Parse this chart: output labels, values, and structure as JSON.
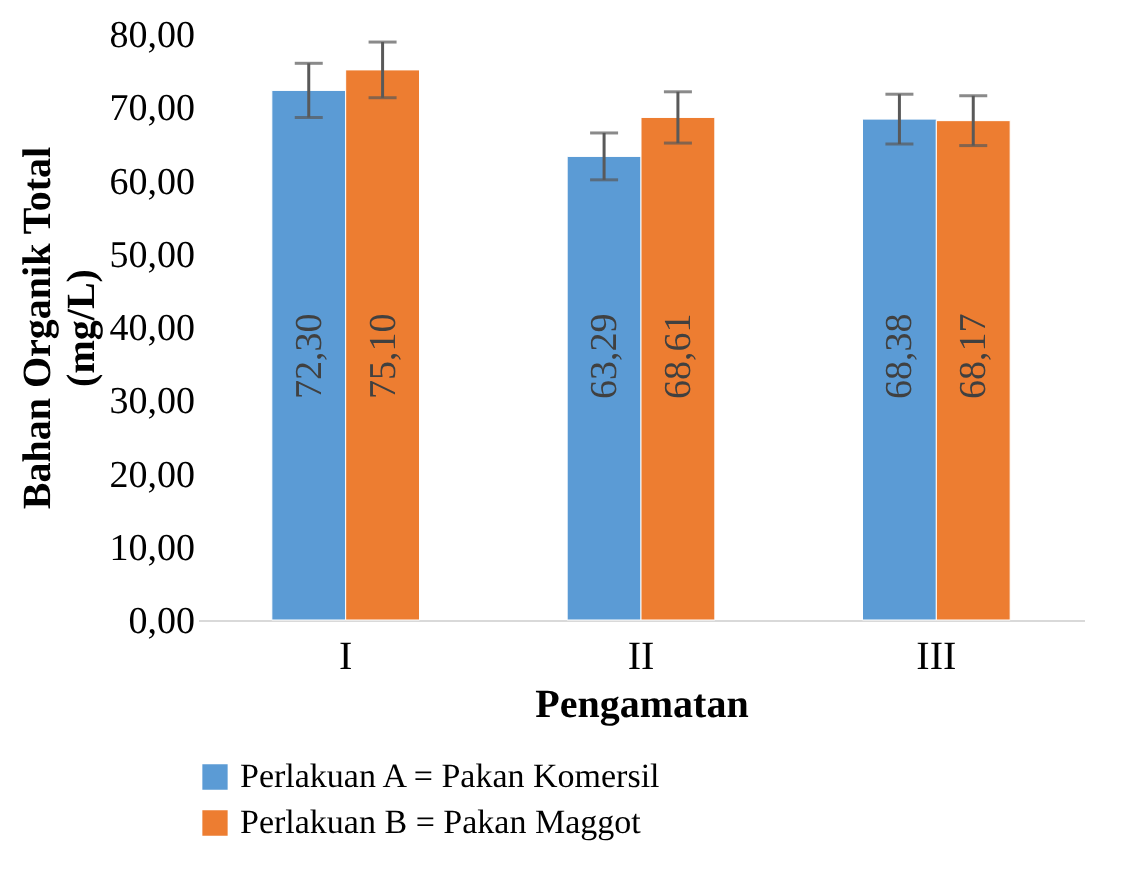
{
  "chart_data": {
    "type": "bar",
    "xlabel": "Pengamatan",
    "ylabel": "Bahan Organik Total (mg/L)",
    "categories": [
      "I",
      "II",
      "III"
    ],
    "series": [
      {
        "name": "Perlakuan A = Pakan Komersil",
        "color": "#5b9bd5",
        "values": [
          72.3,
          63.29,
          68.38
        ],
        "errors": [
          3.7,
          3.2,
          3.4
        ],
        "value_labels": [
          "72,30",
          "63,29",
          "68,38"
        ]
      },
      {
        "name": "Perlakuan B = Pakan Maggot",
        "color": "#ed7d31",
        "values": [
          75.1,
          68.61,
          68.17
        ],
        "errors": [
          3.8,
          3.5,
          3.4
        ],
        "value_labels": [
          "75,10",
          "68,61",
          "68,17"
        ]
      }
    ],
    "ylim": [
      0,
      80
    ],
    "yticks": [
      {
        "value": 0,
        "label": "0,00"
      },
      {
        "value": 10,
        "label": "10,00"
      },
      {
        "value": 20,
        "label": "20,00"
      },
      {
        "value": 30,
        "label": "30,00"
      },
      {
        "value": 40,
        "label": "40,00"
      },
      {
        "value": 50,
        "label": "50,00"
      },
      {
        "value": 60,
        "label": "60,00"
      },
      {
        "value": 70,
        "label": "70,00"
      },
      {
        "value": 80,
        "label": "80,00"
      }
    ],
    "grid": false,
    "legend": "bottom"
  }
}
